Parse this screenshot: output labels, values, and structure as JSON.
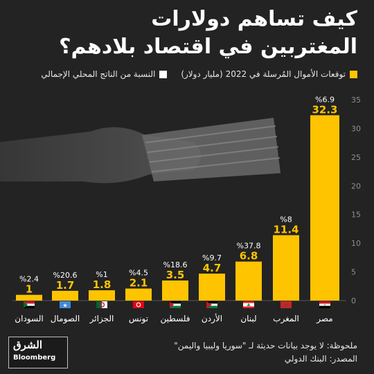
{
  "title_lines": [
    "كيف تساهم دولارات",
    "المغتربين في اقتصاد بلادهم؟"
  ],
  "legend": {
    "remittances": "توقعات الأموال المُرسلة في 2022  (مليار دولار)",
    "gdp_share": "النسبة من الناتج المحلي الإجمالي"
  },
  "colors": {
    "bar": "#ffc400",
    "background": "#232323",
    "gdp_swatch": "#ffffff"
  },
  "chart_data": {
    "type": "bar",
    "categories": [
      "السودان",
      "الصومال",
      "الجزائر",
      "تونس",
      "فلسطين",
      "الأردن",
      "لبنان",
      "المغرب",
      "مصر"
    ],
    "values": [
      1,
      1.7,
      1.8,
      2.1,
      3.5,
      4.7,
      6.8,
      11.4,
      32.3
    ],
    "value_labels": [
      "1",
      "1.7",
      "1.8",
      "2.1",
      "3.5",
      "4.7",
      "6.8",
      "11.4",
      "32.3"
    ],
    "gdp_share_labels": [
      "%2.4",
      "%20.6",
      "%1",
      "%4.5",
      "%18.6",
      "%9.7",
      "%37.8",
      "%8",
      "%6.9"
    ],
    "flags": [
      "sudan-flag-icon",
      "somalia-flag-icon",
      "algeria-flag-icon",
      "tunisia-flag-icon",
      "palestine-flag-icon",
      "jordan-flag-icon",
      "lebanon-flag-icon",
      "morocco-flag-icon",
      "egypt-flag-icon"
    ],
    "ylim": [
      0,
      35
    ],
    "yticks": [
      0,
      5,
      10,
      15,
      20,
      25,
      30,
      35
    ],
    "grid": false,
    "axis_side": "right"
  },
  "footer": {
    "note": "ملحوظة: لا يوجد بيانات حديثة لـ \"سوريا وليبيا واليمن\"",
    "source": "المصدر: البنك الدولي"
  },
  "logo": {
    "brand": "الشرق",
    "sub": "Bloomberg"
  }
}
